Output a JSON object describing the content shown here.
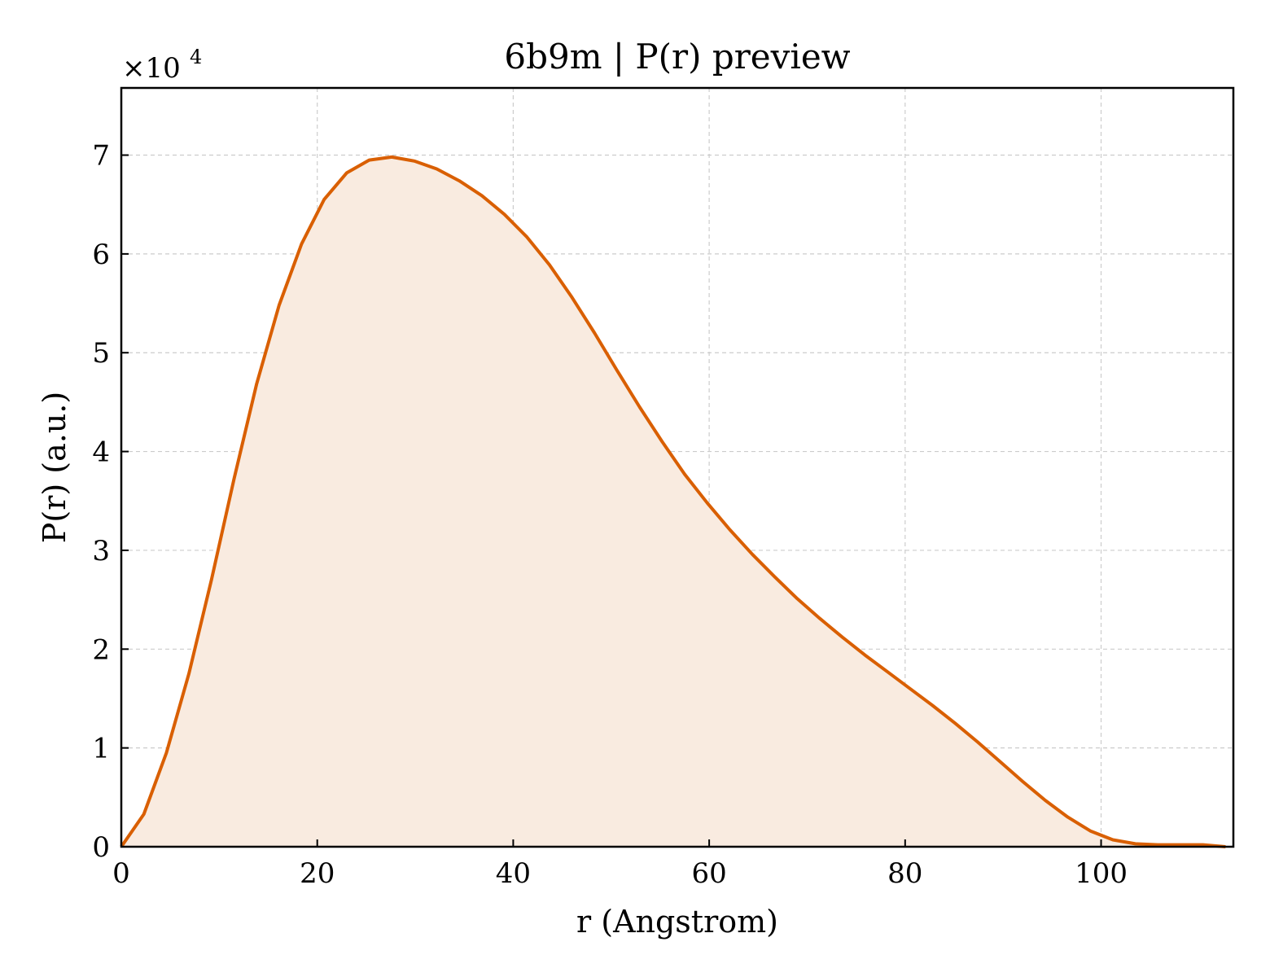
{
  "chart_data": {
    "type": "area",
    "title": "6b9m | P(r) preview",
    "xlabel": "r (Angstrom)",
    "ylabel": "P(r) (a.u.)",
    "y_multiplier": "×10",
    "y_multiplier_exp": "4",
    "xlim": [
      0,
      113.5
    ],
    "ylim": [
      0,
      7.68
    ],
    "x_ticks": [
      0,
      20,
      40,
      60,
      80,
      100
    ],
    "y_ticks": [
      0,
      1,
      2,
      3,
      4,
      5,
      6,
      7
    ],
    "grid": true,
    "colors": {
      "line": "#d95f02",
      "fill": "#f9ebe0"
    },
    "series": [
      {
        "x": [
          0,
          2.3,
          4.6,
          6.9,
          9.2,
          11.5,
          13.8,
          16.1,
          18.4,
          20.7,
          23.0,
          25.3,
          27.6,
          29.9,
          32.2,
          34.5,
          36.8,
          39.1,
          41.4,
          43.7,
          46.0,
          48.3,
          50.6,
          52.9,
          55.2,
          57.5,
          59.8,
          62.1,
          64.4,
          66.7,
          69.0,
          71.3,
          73.6,
          75.9,
          78.2,
          80.5,
          82.8,
          85.1,
          87.4,
          89.7,
          92.0,
          94.3,
          96.6,
          98.9,
          101.2,
          103.5,
          105.8,
          108.1,
          110.4,
          112.7
        ],
        "y": [
          0,
          0.33,
          0.95,
          1.75,
          2.7,
          3.72,
          4.68,
          5.48,
          6.1,
          6.55,
          6.82,
          6.95,
          6.98,
          6.94,
          6.86,
          6.74,
          6.59,
          6.4,
          6.17,
          5.89,
          5.56,
          5.2,
          4.82,
          4.45,
          4.1,
          3.77,
          3.48,
          3.21,
          2.96,
          2.73,
          2.51,
          2.31,
          2.12,
          1.94,
          1.77,
          1.6,
          1.43,
          1.25,
          1.06,
          0.86,
          0.66,
          0.47,
          0.3,
          0.16,
          0.07,
          0.03,
          0.02,
          0.02,
          0.02,
          0.0
        ]
      }
    ]
  }
}
